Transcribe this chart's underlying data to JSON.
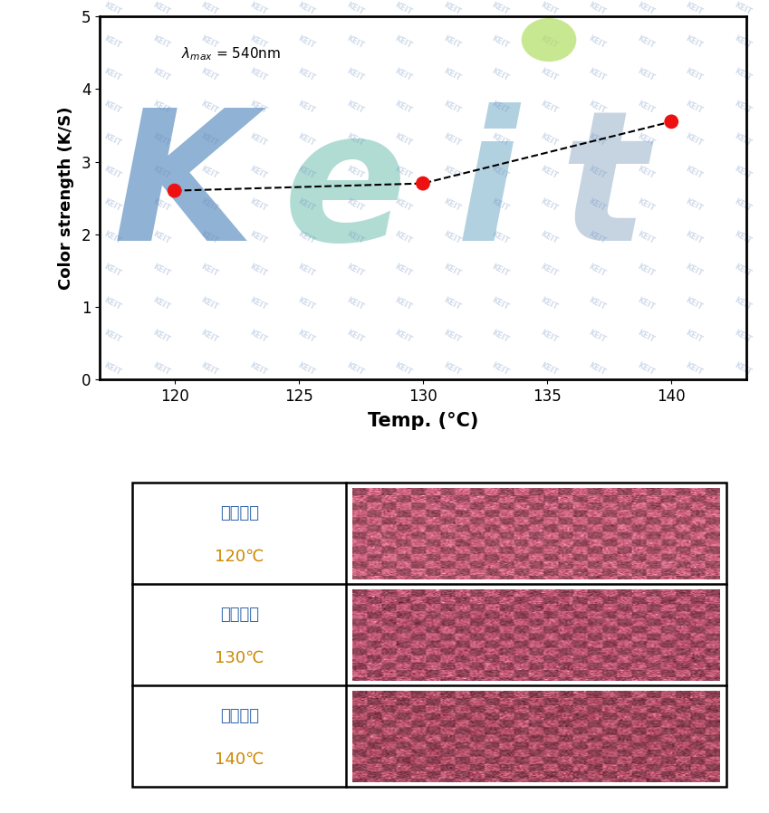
{
  "x_data": [
    120,
    130,
    140
  ],
  "y_data": [
    2.6,
    2.7,
    3.55
  ],
  "xlim": [
    117,
    143
  ],
  "ylim": [
    0,
    5
  ],
  "xticks": [
    120,
    125,
    130,
    135,
    140
  ],
  "yticks": [
    0,
    1,
    2,
    3,
    4,
    5
  ],
  "xlabel": "Temp. (°C)",
  "ylabel": "Color strength (K/S)",
  "dot_color": "#ee1111",
  "dot_size": 130,
  "table_labels_line1": [
    "염색온도",
    "염색온도",
    "염색온도"
  ],
  "table_labels_line2": [
    "120℃",
    "130℃",
    "140℃"
  ],
  "fabric_colors": [
    "#c4607a",
    "#b85570",
    "#b05068"
  ],
  "label_color_line1": "#3366aa",
  "label_color_line2": "#cc8800",
  "axis_fontsize": 13,
  "tick_fontsize": 12,
  "xlabel_fontsize": 15,
  "ylabel_fontsize": 13,
  "watermark_keit_color": "#8aafd4",
  "watermark_K_color": "#3399cc",
  "watermark_eit_color": "#66cccc",
  "watermark_alpha": 0.55,
  "tile_alpha": 0.3,
  "tile_color": "#6688bb",
  "green_ellipse_color": "#aadd55",
  "green_ellipse_alpha": 0.65
}
